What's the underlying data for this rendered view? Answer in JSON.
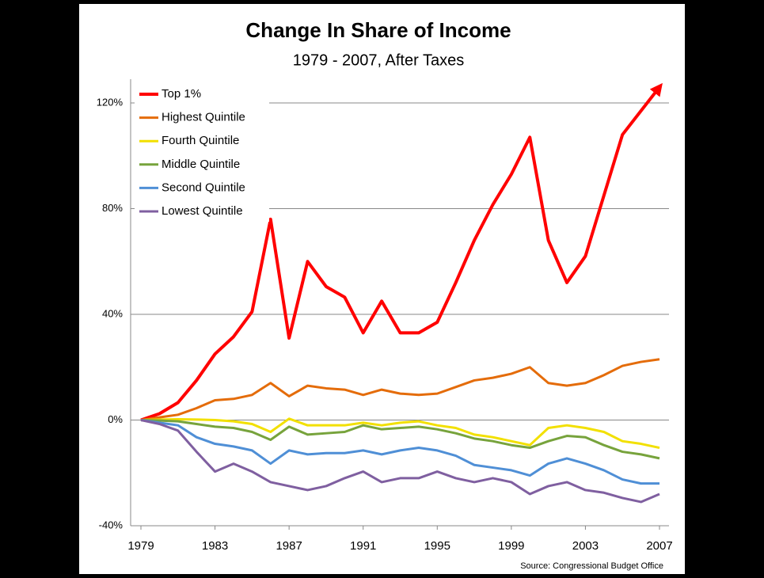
{
  "chart_data": {
    "type": "line",
    "title": "Change In Share of Income",
    "subtitle": "1979 - 2007, After Taxes",
    "source": "Source: Congressional Budget Office",
    "x": [
      1979,
      1980,
      1981,
      1982,
      1983,
      1984,
      1985,
      1986,
      1987,
      1988,
      1989,
      1990,
      1991,
      1992,
      1993,
      1994,
      1995,
      1996,
      1997,
      1998,
      1999,
      2000,
      2001,
      2002,
      2003,
      2004,
      2005,
      2006,
      2007
    ],
    "xlim": [
      1979,
      2007
    ],
    "xticks": [
      1979,
      1983,
      1987,
      1991,
      1995,
      1999,
      2003,
      2007
    ],
    "ylim": [
      -40,
      120
    ],
    "yticks": [
      {
        "value": -40,
        "label": "-40%"
      },
      {
        "value": 0,
        "label": "0%"
      },
      {
        "value": 40,
        "label": "40%"
      },
      {
        "value": 80,
        "label": "80%"
      },
      {
        "value": 120,
        "label": "120%"
      }
    ],
    "grid": true,
    "legend": "upper left",
    "series": [
      {
        "name": "Top 1%",
        "color": "#ff0000",
        "values": [
          0,
          2.4,
          6.6,
          15,
          25,
          31.5,
          41,
          76,
          31,
          60,
          50.5,
          46.5,
          33,
          45,
          33,
          33,
          37,
          52,
          68,
          81.5,
          93,
          107,
          68,
          52,
          62,
          85,
          108,
          117,
          126
        ]
      },
      {
        "name": "Highest Quintile",
        "color": "#e46c0a",
        "values": [
          0,
          1,
          2,
          4.5,
          7.5,
          8,
          9.5,
          14,
          9,
          13,
          12,
          11.5,
          9.5,
          11.5,
          10,
          9.5,
          10,
          12.5,
          15,
          16,
          17.5,
          20,
          14,
          13,
          14,
          17,
          20.5,
          22,
          23
        ]
      },
      {
        "name": "Fourth Quintile",
        "color": "#f2e000",
        "values": [
          0,
          0.2,
          0.3,
          0.2,
          0,
          -0.5,
          -1.5,
          -4.5,
          0.5,
          -2,
          -2,
          -2,
          -1,
          -2,
          -1,
          -0.5,
          -2,
          -3,
          -5.5,
          -6.5,
          -8,
          -9.5,
          -3,
          -2,
          -3,
          -4.5,
          -8,
          -9,
          -10.5
        ]
      },
      {
        "name": "Middle Quintile",
        "color": "#77a33c",
        "values": [
          0,
          -0.2,
          -0.5,
          -1.5,
          -2.5,
          -3,
          -4.5,
          -7.5,
          -2.5,
          -5.5,
          -5,
          -4.5,
          -2,
          -3.5,
          -3,
          -2.5,
          -3.5,
          -5,
          -7,
          -8,
          -9.5,
          -10.5,
          -8,
          -6,
          -6.5,
          -9.5,
          -12,
          -13,
          -14.5
        ]
      },
      {
        "name": "Second Quintile",
        "color": "#4f8fd6",
        "values": [
          0,
          -1,
          -2,
          -6.5,
          -9,
          -10,
          -11.5,
          -16.5,
          -11.5,
          -13,
          -12.5,
          -12.5,
          -11.5,
          -13,
          -11.5,
          -10.5,
          -11.5,
          -13.5,
          -17,
          -18,
          -19,
          -21,
          -16.5,
          -14.5,
          -16.5,
          -19,
          -22.5,
          -24,
          -24
        ]
      },
      {
        "name": "Lowest Quintile",
        "color": "#7f5fa0",
        "values": [
          0,
          -1.5,
          -4,
          -12,
          -19.5,
          -16.5,
          -19.5,
          -23.5,
          -25,
          -26.5,
          -25,
          -22,
          -19.5,
          -23.5,
          -22,
          -22,
          -19.5,
          -22,
          -23.5,
          -22,
          -23.5,
          -28,
          -25,
          -23.5,
          -26.5,
          -27.5,
          -29.5,
          -31,
          -28
        ]
      }
    ]
  }
}
